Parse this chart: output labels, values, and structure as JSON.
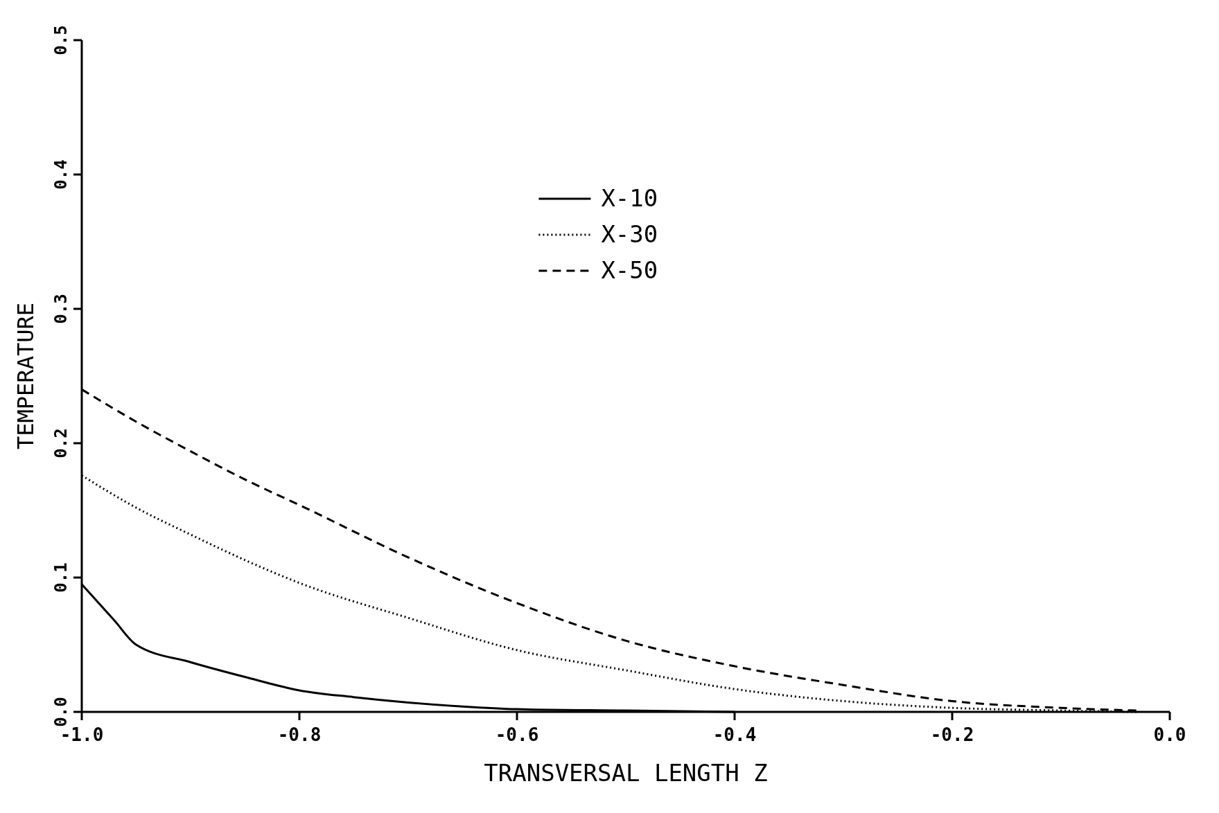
{
  "chart_data": {
    "type": "line",
    "xlabel": "TRANSVERSAL LENGTH Z",
    "ylabel": "TEMPERATURE",
    "xlim": [
      -1.0,
      0.0
    ],
    "ylim": [
      0.0,
      0.5
    ],
    "xticks": [
      {
        "value": -1.0,
        "label": "-1.0"
      },
      {
        "value": -0.8,
        "label": "-0.8"
      },
      {
        "value": -0.6,
        "label": "-0.6"
      },
      {
        "value": -0.4,
        "label": "-0.4"
      },
      {
        "value": -0.2,
        "label": "-0.2"
      },
      {
        "value": 0.0,
        "label": "0.0"
      }
    ],
    "yticks": [
      {
        "value": 0.0,
        "label": "0.0"
      },
      {
        "value": 0.1,
        "label": "0.1"
      },
      {
        "value": 0.2,
        "label": "0.2"
      },
      {
        "value": 0.3,
        "label": "0.3"
      },
      {
        "value": 0.4,
        "label": "0.4"
      },
      {
        "value": 0.5,
        "label": "0.5"
      }
    ],
    "grid": false,
    "legend": "top",
    "series": [
      {
        "name": "X-10",
        "color": "#000000",
        "line_style": "solid",
        "x": [
          -1.0,
          -0.97,
          -0.95,
          -0.9,
          -0.85,
          -0.8,
          -0.75,
          -0.7,
          -0.65,
          -0.6,
          -0.5,
          -0.4
        ],
        "values": [
          0.095,
          0.068,
          0.05,
          0.037,
          0.026,
          0.016,
          0.011,
          0.007,
          0.004,
          0.002,
          0.001,
          0.0
        ]
      },
      {
        "name": "X-30",
        "color": "#000000",
        "line_style": "dotted",
        "x": [
          -1.0,
          -0.95,
          -0.9,
          -0.85,
          -0.8,
          -0.7,
          -0.6,
          -0.5,
          -0.4,
          -0.3,
          -0.2,
          -0.1,
          -0.03
        ],
        "values": [
          0.176,
          0.152,
          0.132,
          0.113,
          0.096,
          0.07,
          0.046,
          0.031,
          0.017,
          0.008,
          0.003,
          0.001,
          0.0
        ]
      },
      {
        "name": "X-50",
        "color": "#000000",
        "line_style": "dashed",
        "x": [
          -1.0,
          -0.95,
          -0.9,
          -0.85,
          -0.8,
          -0.7,
          -0.6,
          -0.5,
          -0.4,
          -0.3,
          -0.2,
          -0.1,
          -0.03
        ],
        "values": [
          0.24,
          0.216,
          0.194,
          0.173,
          0.154,
          0.115,
          0.081,
          0.053,
          0.034,
          0.02,
          0.008,
          0.003,
          0.001
        ]
      }
    ]
  }
}
